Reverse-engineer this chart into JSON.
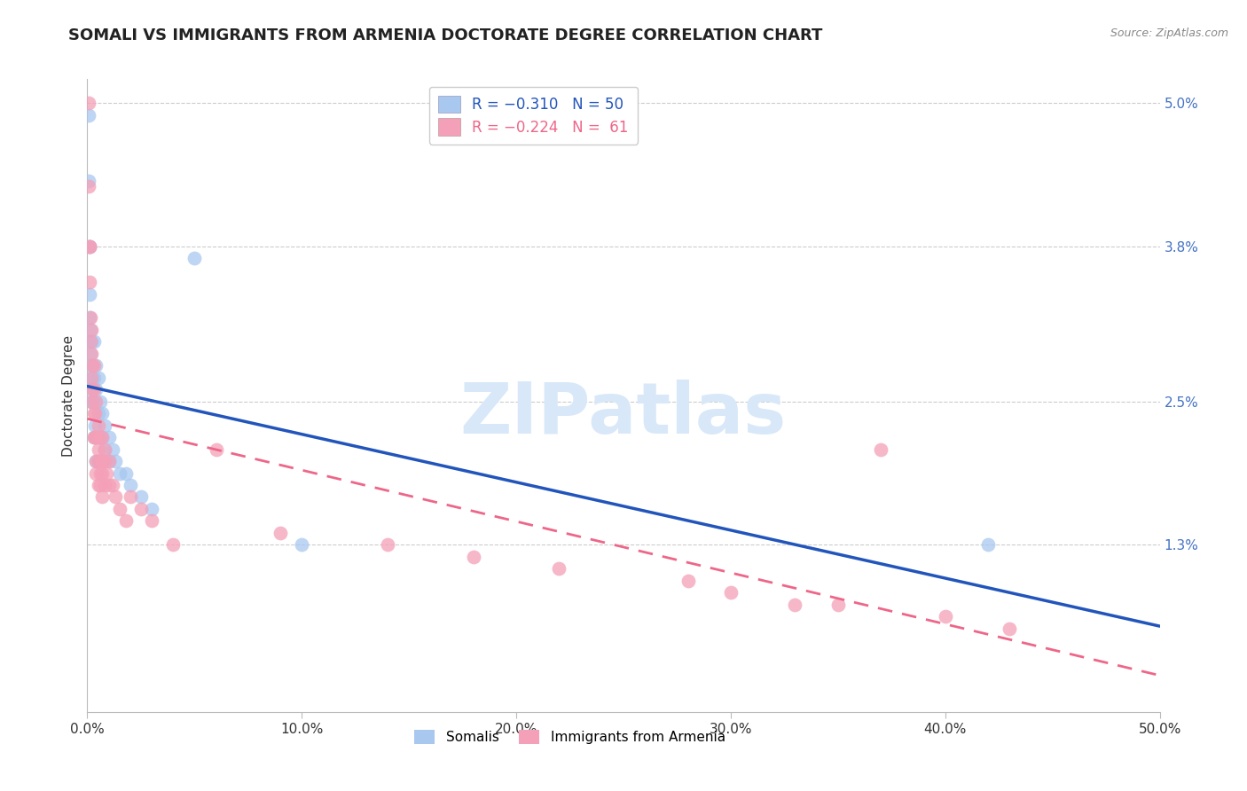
{
  "title": "SOMALI VS IMMIGRANTS FROM ARMENIA DOCTORATE DEGREE CORRELATION CHART",
  "source": "Source: ZipAtlas.com",
  "ylabel": "Doctorate Degree",
  "watermark": "ZIPatlas",
  "xlim": [
    0.0,
    0.5
  ],
  "ylim": [
    -0.001,
    0.052
  ],
  "yticks": [
    0.013,
    0.025,
    0.038,
    0.05
  ],
  "ytick_labels": [
    "1.3%",
    "2.5%",
    "3.8%",
    "5.0%"
  ],
  "xticks": [
    0.0,
    0.1,
    0.2,
    0.3,
    0.4,
    0.5
  ],
  "xtick_labels": [
    "0.0%",
    "10.0%",
    "20.0%",
    "30.0%",
    "40.0%",
    "50.0%"
  ],
  "somali_color": "#A8C8F0",
  "armenia_color": "#F4A0B8",
  "somali_line_color": "#2255BB",
  "armenia_line_color": "#EE6688",
  "background_color": "#FFFFFF",
  "grid_color": "#CCCCCC",
  "right_axis_color": "#4472C4",
  "title_fontsize": 13,
  "axis_label_fontsize": 11,
  "tick_fontsize": 11,
  "somali_points": [
    [
      0.0005,
      0.049
    ],
    [
      0.0008,
      0.0435
    ],
    [
      0.001,
      0.038
    ],
    [
      0.001,
      0.038
    ],
    [
      0.0012,
      0.034
    ],
    [
      0.0012,
      0.032
    ],
    [
      0.0015,
      0.031
    ],
    [
      0.0015,
      0.03
    ],
    [
      0.0015,
      0.029
    ],
    [
      0.0018,
      0.028
    ],
    [
      0.0018,
      0.027
    ],
    [
      0.002,
      0.03
    ],
    [
      0.002,
      0.028
    ],
    [
      0.002,
      0.026
    ],
    [
      0.002,
      0.025
    ],
    [
      0.0025,
      0.027
    ],
    [
      0.0025,
      0.025
    ],
    [
      0.003,
      0.03
    ],
    [
      0.003,
      0.027
    ],
    [
      0.003,
      0.025
    ],
    [
      0.003,
      0.022
    ],
    [
      0.0035,
      0.025
    ],
    [
      0.0035,
      0.023
    ],
    [
      0.004,
      0.028
    ],
    [
      0.004,
      0.026
    ],
    [
      0.004,
      0.022
    ],
    [
      0.004,
      0.02
    ],
    [
      0.005,
      0.027
    ],
    [
      0.005,
      0.024
    ],
    [
      0.005,
      0.022
    ],
    [
      0.005,
      0.02
    ],
    [
      0.006,
      0.025
    ],
    [
      0.006,
      0.022
    ],
    [
      0.007,
      0.024
    ],
    [
      0.007,
      0.022
    ],
    [
      0.008,
      0.023
    ],
    [
      0.008,
      0.021
    ],
    [
      0.01,
      0.022
    ],
    [
      0.01,
      0.02
    ],
    [
      0.012,
      0.021
    ],
    [
      0.013,
      0.02
    ],
    [
      0.015,
      0.019
    ],
    [
      0.018,
      0.019
    ],
    [
      0.02,
      0.018
    ],
    [
      0.025,
      0.017
    ],
    [
      0.03,
      0.016
    ],
    [
      0.05,
      0.037
    ],
    [
      0.1,
      0.013
    ],
    [
      0.42,
      0.013
    ]
  ],
  "armenia_points": [
    [
      0.0005,
      0.05
    ],
    [
      0.0008,
      0.043
    ],
    [
      0.001,
      0.038
    ],
    [
      0.001,
      0.038
    ],
    [
      0.0012,
      0.035
    ],
    [
      0.0015,
      0.032
    ],
    [
      0.0015,
      0.03
    ],
    [
      0.002,
      0.031
    ],
    [
      0.002,
      0.029
    ],
    [
      0.002,
      0.027
    ],
    [
      0.002,
      0.025
    ],
    [
      0.0025,
      0.028
    ],
    [
      0.0025,
      0.026
    ],
    [
      0.003,
      0.028
    ],
    [
      0.003,
      0.026
    ],
    [
      0.003,
      0.024
    ],
    [
      0.003,
      0.022
    ],
    [
      0.0035,
      0.024
    ],
    [
      0.0035,
      0.022
    ],
    [
      0.004,
      0.025
    ],
    [
      0.004,
      0.022
    ],
    [
      0.004,
      0.02
    ],
    [
      0.004,
      0.019
    ],
    [
      0.005,
      0.023
    ],
    [
      0.005,
      0.021
    ],
    [
      0.005,
      0.02
    ],
    [
      0.005,
      0.018
    ],
    [
      0.006,
      0.022
    ],
    [
      0.006,
      0.02
    ],
    [
      0.006,
      0.019
    ],
    [
      0.006,
      0.018
    ],
    [
      0.007,
      0.022
    ],
    [
      0.007,
      0.02
    ],
    [
      0.007,
      0.019
    ],
    [
      0.007,
      0.017
    ],
    [
      0.008,
      0.021
    ],
    [
      0.008,
      0.02
    ],
    [
      0.008,
      0.018
    ],
    [
      0.009,
      0.019
    ],
    [
      0.01,
      0.02
    ],
    [
      0.01,
      0.018
    ],
    [
      0.012,
      0.018
    ],
    [
      0.013,
      0.017
    ],
    [
      0.015,
      0.016
    ],
    [
      0.018,
      0.015
    ],
    [
      0.02,
      0.017
    ],
    [
      0.025,
      0.016
    ],
    [
      0.03,
      0.015
    ],
    [
      0.04,
      0.013
    ],
    [
      0.06,
      0.021
    ],
    [
      0.09,
      0.014
    ],
    [
      0.14,
      0.013
    ],
    [
      0.18,
      0.012
    ],
    [
      0.22,
      0.011
    ],
    [
      0.28,
      0.01
    ],
    [
      0.3,
      0.009
    ],
    [
      0.33,
      0.008
    ],
    [
      0.35,
      0.008
    ],
    [
      0.37,
      0.021
    ],
    [
      0.4,
      0.007
    ],
    [
      0.43,
      0.006
    ]
  ]
}
